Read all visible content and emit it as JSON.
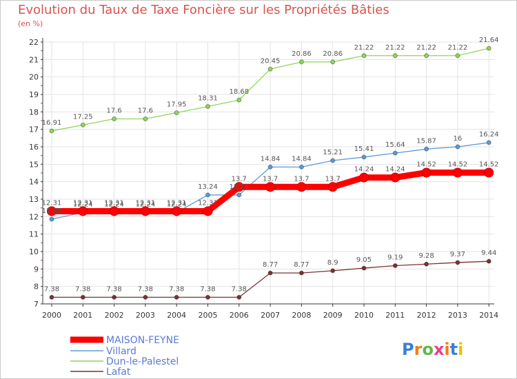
{
  "chart_data": {
    "type": "line",
    "title": "Evolution du Taux de Taxe Foncière sur les Propriétés Bâties",
    "ylabel": "(en %)",
    "xlabel": "",
    "ylim": [
      7,
      22
    ],
    "x": [
      "2000",
      "2001",
      "2002",
      "2003",
      "2004",
      "2005",
      "2006",
      "2007",
      "2008",
      "2009",
      "2010",
      "2011",
      "2012",
      "2013",
      "2014"
    ],
    "y_ticks": [
      "7",
      "8",
      "9",
      "10",
      "11",
      "12",
      "13",
      "14",
      "15",
      "16",
      "17",
      "18",
      "19",
      "20",
      "21",
      "22"
    ],
    "series": [
      {
        "name": "MAISON-FEYNE",
        "color": "#ff0000",
        "values": [
          12.31,
          12.31,
          12.31,
          12.31,
          12.31,
          12.31,
          13.7,
          13.7,
          13.7,
          13.7,
          14.24,
          14.24,
          14.52,
          14.52,
          14.52
        ],
        "labels": [
          "12.31",
          "12.31",
          "12.31",
          "12.31",
          "12.31",
          "12.31",
          "13.7",
          "13.7",
          "13.7",
          "13.7",
          "14.24",
          "14.24",
          "14.52",
          "14.52",
          "14.52"
        ]
      },
      {
        "name": "Villard",
        "color": "#5b9bd5",
        "values": [
          11.85,
          12.24,
          12.24,
          12.24,
          12.24,
          13.24,
          13.24,
          14.84,
          14.84,
          15.21,
          15.41,
          15.64,
          15.87,
          16,
          16.24
        ],
        "labels": [
          "11.85",
          "12.24",
          "12.24",
          "12.24",
          "12.24",
          "13.24",
          "13.24",
          "14.84",
          "14.84",
          "15.21",
          "15.41",
          "15.64",
          "15.87",
          "16",
          "16.24"
        ]
      },
      {
        "name": "Dun-le-Palestel",
        "color": "#8ed65a",
        "values": [
          16.91,
          17.25,
          17.6,
          17.6,
          17.95,
          18.31,
          18.68,
          20.45,
          20.86,
          20.86,
          21.22,
          21.22,
          21.22,
          21.22,
          21.64
        ],
        "labels": [
          "16.91",
          "17.25",
          "17.6",
          "17.6",
          "17.95",
          "18.31",
          "18.68",
          "20.45",
          "20.86",
          "20.86",
          "21.22",
          "21.22",
          "21.22",
          "21.22",
          "21.64"
        ]
      },
      {
        "name": "Lafat",
        "color": "#7a3232",
        "values": [
          7.38,
          7.38,
          7.38,
          7.38,
          7.38,
          7.38,
          7.38,
          8.77,
          8.77,
          8.9,
          9.05,
          9.19,
          9.28,
          9.37,
          9.44
        ],
        "labels": [
          "7.38",
          "7.38",
          "7.38",
          "7.38",
          "7.38",
          "7.38",
          "7.38",
          "8.77",
          "8.77",
          "8.9",
          "9.05",
          "9.19",
          "9.28",
          "9.37",
          "9.44"
        ]
      }
    ],
    "legend_position": "bottom-left",
    "grid": true
  },
  "logo": {
    "text": "Proxiti"
  }
}
